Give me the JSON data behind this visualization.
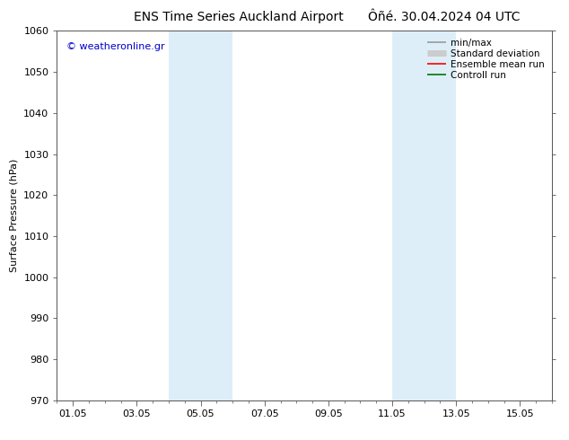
{
  "title_left": "ENS Time Series Auckland Airport",
  "title_right": "Ôñé. 30.04.2024 04 UTC",
  "ylabel": "Surface Pressure (hPa)",
  "ylim": [
    970,
    1060
  ],
  "yticks": [
    970,
    980,
    990,
    1000,
    1010,
    1020,
    1030,
    1040,
    1050,
    1060
  ],
  "xlim": [
    0.0,
    15.5
  ],
  "xtick_labels": [
    "01.05",
    "03.05",
    "05.05",
    "07.05",
    "09.05",
    "11.05",
    "13.05",
    "15.05"
  ],
  "xtick_positions": [
    0.5,
    2.5,
    4.5,
    6.5,
    8.5,
    10.5,
    12.5,
    14.5
  ],
  "shaded_regions": [
    {
      "x_start": 3.5,
      "x_end": 5.5,
      "color": "#ddeef9"
    },
    {
      "x_start": 10.5,
      "x_end": 12.5,
      "color": "#ddeef9"
    }
  ],
  "watermark": "© weatheronline.gr",
  "watermark_color": "#0000cc",
  "legend_entries": [
    {
      "label": "min/max",
      "color": "#999999",
      "lw": 1.2
    },
    {
      "label": "Standard deviation",
      "color": "#cccccc",
      "lw": 5
    },
    {
      "label": "Ensemble mean run",
      "color": "#ff0000",
      "lw": 1.2
    },
    {
      "label": "Controll run",
      "color": "#007700",
      "lw": 1.2
    }
  ],
  "bg_color": "#ffffff",
  "plot_bg_color": "#ffffff",
  "tick_label_fontsize": 8,
  "axis_label_fontsize": 8,
  "title_fontsize": 10
}
